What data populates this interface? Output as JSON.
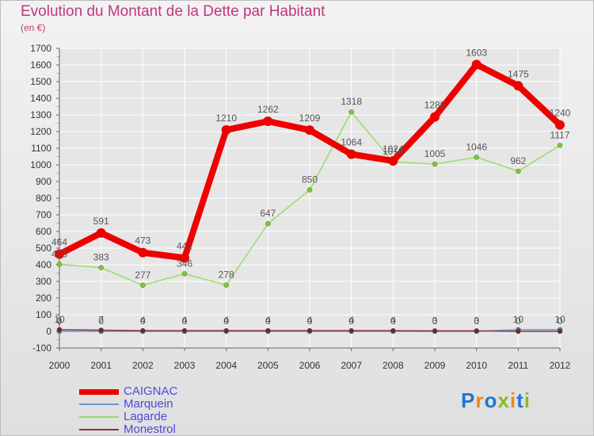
{
  "header": {
    "title": "Evolution du Montant de la Dette par Habitant",
    "subtitle": "(en €)"
  },
  "logo": {
    "text": "Proxiti"
  },
  "colors": {
    "title": "#c2387a",
    "legend_text": "#4a4adc",
    "label_text": "#555555",
    "axis": "#666666",
    "grid": "#ffffff"
  },
  "chart_data": {
    "type": "line",
    "title": "Evolution du Montant de la Dette par Habitant",
    "subtitle": "(en €)",
    "xlabel": "",
    "ylabel": "",
    "x": [
      "2000",
      "2001",
      "2002",
      "2003",
      "2004",
      "2005",
      "2006",
      "2007",
      "2008",
      "2009",
      "2010",
      "2011",
      "2012"
    ],
    "ylim": [
      -100,
      1700
    ],
    "yticks": [
      -100,
      0,
      100,
      200,
      300,
      400,
      500,
      600,
      700,
      800,
      900,
      1000,
      1100,
      1200,
      1300,
      1400,
      1500,
      1600,
      1700
    ],
    "grid": true,
    "legend": "bottom-left",
    "series": [
      {
        "name": "Lagarde",
        "color": "#99dd66",
        "point_color": "#77cc33",
        "values": [
          403,
          383,
          277,
          346,
          278,
          647,
          850,
          1318,
          1018,
          1005,
          1046,
          962,
          1117
        ],
        "labels": [
          "403",
          "383",
          "277",
          "346",
          "278",
          "647",
          "850",
          "1318",
          "1018",
          "1005",
          "1046",
          "962",
          "1117"
        ]
      },
      {
        "name": "Marquein",
        "color": "#6699cc",
        "point_color": "#4477bb",
        "values": [
          0,
          0,
          0,
          0,
          0,
          0,
          0,
          0,
          0,
          0,
          0,
          10,
          10
        ],
        "labels": [
          "0",
          "0",
          "0",
          "0",
          "0",
          "0",
          "0",
          "0",
          "0",
          "0",
          "0",
          "10",
          "10"
        ]
      },
      {
        "name": "Monestrol",
        "color": "#883344",
        "point_color": "#772233",
        "values": [
          10,
          7,
          4,
          4,
          4,
          4,
          4,
          4,
          4,
          3,
          3,
          0,
          0
        ],
        "labels": [
          "10",
          "7",
          "4",
          "4",
          "4",
          "4",
          "4",
          "4",
          "4",
          "3",
          "3",
          "0",
          "0"
        ]
      },
      {
        "name": "CAIGNAC",
        "color": "#ee0000",
        "point_color": "#ee0000",
        "values": [
          464,
          591,
          473,
          441,
          1210,
          1262,
          1209,
          1064,
          1024,
          1288,
          1603,
          1475,
          1240
        ],
        "labels": [
          "464",
          "591",
          "473",
          "441",
          "1210",
          "1262",
          "1209",
          "1064",
          "1024",
          "1288",
          "1603",
          "1475",
          "1240"
        ]
      }
    ],
    "legend_entries": [
      "CAIGNAC",
      "Marquein",
      "Lagarde",
      "Monestrol"
    ]
  }
}
